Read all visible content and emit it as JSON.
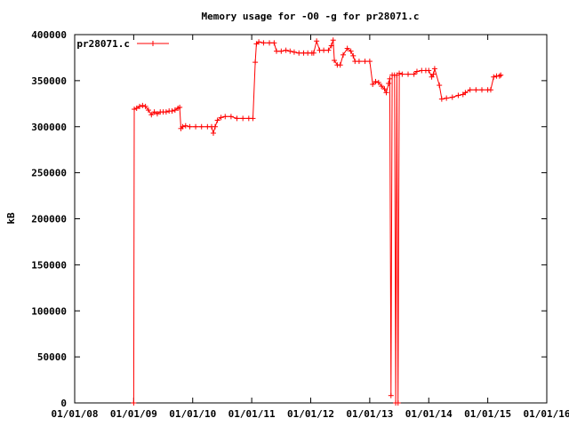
{
  "chart_data": {
    "type": "line",
    "title": "Memory usage for -O0 -g for pr28071.c",
    "xlabel": "",
    "ylabel": "kB",
    "x_ticks": [
      "01/01/08",
      "01/01/09",
      "01/01/10",
      "01/01/11",
      "01/01/12",
      "01/01/13",
      "01/01/14",
      "01/01/15",
      "01/01/16"
    ],
    "x_tick_values": [
      0,
      1,
      2,
      3,
      4,
      5,
      6,
      7,
      8
    ],
    "y_ticks": [
      "0",
      "50000",
      "100000",
      "150000",
      "200000",
      "250000",
      "300000",
      "350000",
      "400000"
    ],
    "y_tick_values": [
      0,
      50000,
      100000,
      150000,
      200000,
      250000,
      300000,
      350000,
      400000
    ],
    "xlim": [
      0,
      8
    ],
    "ylim": [
      0,
      400000
    ],
    "x_unit": "years since 01/01/08",
    "legend_position": "top-left",
    "grid": false,
    "series": [
      {
        "name": "pr28071.c",
        "color": "#ff0000",
        "marker": "plus",
        "points": [
          [
            1.0,
            0
          ],
          [
            1.01,
            319000
          ],
          [
            1.05,
            320000
          ],
          [
            1.1,
            322000
          ],
          [
            1.15,
            323000
          ],
          [
            1.2,
            322000
          ],
          [
            1.25,
            318000
          ],
          [
            1.3,
            313000
          ],
          [
            1.35,
            316000
          ],
          [
            1.4,
            314000
          ],
          [
            1.45,
            316000
          ],
          [
            1.5,
            316000
          ],
          [
            1.55,
            316000
          ],
          [
            1.6,
            317000
          ],
          [
            1.65,
            317000
          ],
          [
            1.7,
            318000
          ],
          [
            1.75,
            320000
          ],
          [
            1.78,
            321000
          ],
          [
            1.8,
            298000
          ],
          [
            1.83,
            300000
          ],
          [
            1.88,
            301000
          ],
          [
            1.95,
            300000
          ],
          [
            2.05,
            300000
          ],
          [
            2.15,
            300000
          ],
          [
            2.25,
            300000
          ],
          [
            2.32,
            300000
          ],
          [
            2.35,
            293000
          ],
          [
            2.38,
            300000
          ],
          [
            2.42,
            307000
          ],
          [
            2.48,
            310000
          ],
          [
            2.55,
            311000
          ],
          [
            2.65,
            311000
          ],
          [
            2.75,
            309000
          ],
          [
            2.85,
            309000
          ],
          [
            2.95,
            309000
          ],
          [
            3.02,
            309000
          ],
          [
            3.06,
            370000
          ],
          [
            3.08,
            390000
          ],
          [
            3.12,
            392000
          ],
          [
            3.2,
            391000
          ],
          [
            3.3,
            391000
          ],
          [
            3.38,
            391000
          ],
          [
            3.42,
            382000
          ],
          [
            3.5,
            382000
          ],
          [
            3.58,
            383000
          ],
          [
            3.65,
            382000
          ],
          [
            3.72,
            381000
          ],
          [
            3.8,
            380000
          ],
          [
            3.88,
            380000
          ],
          [
            3.95,
            380000
          ],
          [
            4.02,
            380000
          ],
          [
            4.05,
            380000
          ],
          [
            4.1,
            393000
          ],
          [
            4.15,
            383000
          ],
          [
            4.22,
            383000
          ],
          [
            4.3,
            383000
          ],
          [
            4.35,
            388000
          ],
          [
            4.38,
            394000
          ],
          [
            4.4,
            372000
          ],
          [
            4.45,
            367000
          ],
          [
            4.5,
            367000
          ],
          [
            4.55,
            378000
          ],
          [
            4.62,
            385000
          ],
          [
            4.68,
            382000
          ],
          [
            4.72,
            377000
          ],
          [
            4.75,
            371000
          ],
          [
            4.82,
            371000
          ],
          [
            4.92,
            371000
          ],
          [
            5.0,
            371000
          ],
          [
            5.05,
            346000
          ],
          [
            5.1,
            349000
          ],
          [
            5.15,
            348000
          ],
          [
            5.2,
            344000
          ],
          [
            5.25,
            341000
          ],
          [
            5.28,
            337000
          ],
          [
            5.32,
            347000
          ],
          [
            5.34,
            352000
          ],
          [
            5.36,
            8000
          ],
          [
            5.38,
            356000
          ],
          [
            5.42,
            356000
          ],
          [
            5.44,
            0
          ],
          [
            5.46,
            356000
          ],
          [
            5.48,
            0
          ],
          [
            5.5,
            358000
          ],
          [
            5.55,
            357000
          ],
          [
            5.65,
            357000
          ],
          [
            5.75,
            357000
          ],
          [
            5.8,
            360000
          ],
          [
            5.88,
            361000
          ],
          [
            5.95,
            361000
          ],
          [
            6.0,
            361000
          ],
          [
            6.05,
            354000
          ],
          [
            6.08,
            357000
          ],
          [
            6.1,
            363000
          ],
          [
            6.18,
            345000
          ],
          [
            6.22,
            330000
          ],
          [
            6.3,
            331000
          ],
          [
            6.4,
            332000
          ],
          [
            6.5,
            334000
          ],
          [
            6.58,
            335000
          ],
          [
            6.62,
            337000
          ],
          [
            6.7,
            340000
          ],
          [
            6.8,
            340000
          ],
          [
            6.9,
            340000
          ],
          [
            7.0,
            340000
          ],
          [
            7.05,
            340000
          ],
          [
            7.1,
            354000
          ],
          [
            7.15,
            355000
          ],
          [
            7.2,
            355000
          ],
          [
            7.22,
            356000
          ]
        ]
      }
    ]
  }
}
